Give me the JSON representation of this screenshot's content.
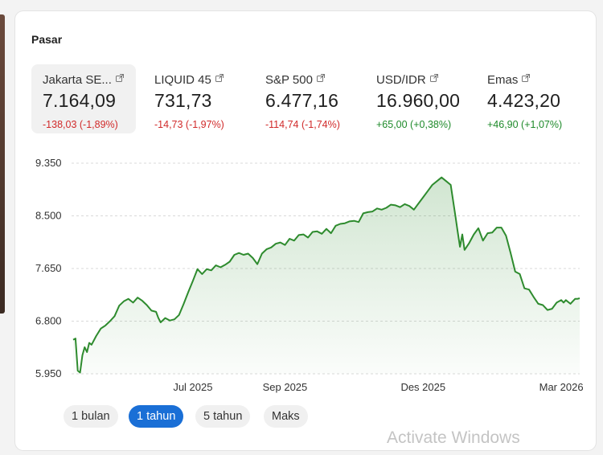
{
  "card": {
    "title": "Pasar"
  },
  "tickers": [
    {
      "name": "Jakarta SE...",
      "value": "7.164,09",
      "change": "-138,03 (-1,89%)",
      "direction": "down",
      "selected": true
    },
    {
      "name": "LIQUID 45",
      "value": "731,73",
      "change": "-14,73 (-1,97%)",
      "direction": "down",
      "selected": false
    },
    {
      "name": "S&P 500",
      "value": "6.477,16",
      "change": "-114,74 (-1,74%)",
      "direction": "down",
      "selected": false
    },
    {
      "name": "USD/IDR",
      "value": "16.960,00",
      "change": "+65,00 (+0,38%)",
      "direction": "up",
      "selected": false
    },
    {
      "name": "Emas",
      "value": "4.423,20",
      "change": "+46,90 (+1,07%)",
      "direction": "up",
      "selected": false
    }
  ],
  "chart_data": {
    "type": "area",
    "title": "",
    "xlabel": "",
    "ylabel": "",
    "ylim": [
      5950,
      9350
    ],
    "y_ticks": [
      "9.350",
      "8.500",
      "7.650",
      "6.800",
      "5.950"
    ],
    "y_tick_values": [
      9350,
      8500,
      7650,
      6800,
      5950
    ],
    "x_ticks": [
      "Jul 2025",
      "Sep 2025",
      "Des 2025",
      "Mar 2026"
    ],
    "x_tick_positions": [
      4.5,
      6.5,
      9.5,
      12.5
    ],
    "xlim": [
      1.9,
      12.9
    ],
    "grid": true,
    "color": "#2e8b2e",
    "series": [
      {
        "x": [
          1.9,
          1.95,
          2.0,
          2.05,
          2.1,
          2.15,
          2.2,
          2.25,
          2.3,
          2.4,
          2.5,
          2.6,
          2.7,
          2.8,
          2.9,
          3.0,
          3.1,
          3.2,
          3.3,
          3.4,
          3.5,
          3.6,
          3.7,
          3.75,
          3.8,
          3.9,
          4.0,
          4.1,
          4.2,
          4.3,
          4.4,
          4.5,
          4.6,
          4.7,
          4.8,
          4.9,
          5.0,
          5.1,
          5.2,
          5.3,
          5.4,
          5.5,
          5.6,
          5.7,
          5.8,
          5.9,
          6.0,
          6.1,
          6.2,
          6.3,
          6.4,
          6.5,
          6.6,
          6.7,
          6.8,
          6.9,
          7.0,
          7.1,
          7.2,
          7.3,
          7.4,
          7.5,
          7.6,
          7.7,
          7.8,
          7.9,
          8.0,
          8.1,
          8.2,
          8.3,
          8.4,
          8.5,
          8.6,
          8.7,
          8.8,
          8.9,
          9.0,
          9.1,
          9.2,
          9.3,
          9.4,
          9.5,
          9.6,
          9.7,
          9.8,
          9.9,
          10.0,
          10.1,
          10.2,
          10.25,
          10.3,
          10.35,
          10.4,
          10.5,
          10.6,
          10.7,
          10.8,
          10.9,
          11.0,
          11.1,
          11.2,
          11.3,
          11.4,
          11.5,
          11.6,
          11.7,
          11.8,
          11.9,
          12.0,
          12.1,
          12.2,
          12.3,
          12.4,
          12.5,
          12.55,
          12.6,
          12.7,
          12.75,
          12.8,
          12.85,
          12.9
        ],
        "y": [
          6500,
          6520,
          6000,
          5970,
          6250,
          6380,
          6300,
          6450,
          6420,
          6560,
          6680,
          6730,
          6800,
          6880,
          7050,
          7120,
          7160,
          7100,
          7180,
          7130,
          7060,
          6970,
          6950,
          6850,
          6780,
          6850,
          6810,
          6830,
          6900,
          7080,
          7270,
          7450,
          7640,
          7560,
          7640,
          7620,
          7700,
          7670,
          7710,
          7760,
          7870,
          7900,
          7870,
          7890,
          7820,
          7720,
          7890,
          7960,
          7990,
          8050,
          8070,
          8030,
          8130,
          8100,
          8190,
          8200,
          8150,
          8240,
          8250,
          8210,
          8290,
          8220,
          8340,
          8370,
          8380,
          8410,
          8420,
          8400,
          8540,
          8560,
          8570,
          8620,
          8600,
          8630,
          8680,
          8670,
          8640,
          8690,
          8660,
          8600,
          8700,
          8800,
          8900,
          9000,
          9060,
          9120,
          9060,
          9000,
          8500,
          8250,
          8000,
          8200,
          7950,
          8060,
          8200,
          8300,
          8100,
          8220,
          8230,
          8310,
          8310,
          8180,
          7900,
          7600,
          7560,
          7330,
          7310,
          7190,
          7080,
          7060,
          6980,
          7000,
          7100,
          7140,
          7100,
          7140,
          7080,
          7120,
          7160,
          7160,
          7170
        ]
      }
    ]
  },
  "range_buttons": [
    {
      "label": "1 bulan",
      "active": false
    },
    {
      "label": "1 tahun",
      "active": true
    },
    {
      "label": "5 tahun",
      "active": false
    },
    {
      "label": "Maks",
      "active": false
    }
  ],
  "watermark": "Activate Windows"
}
